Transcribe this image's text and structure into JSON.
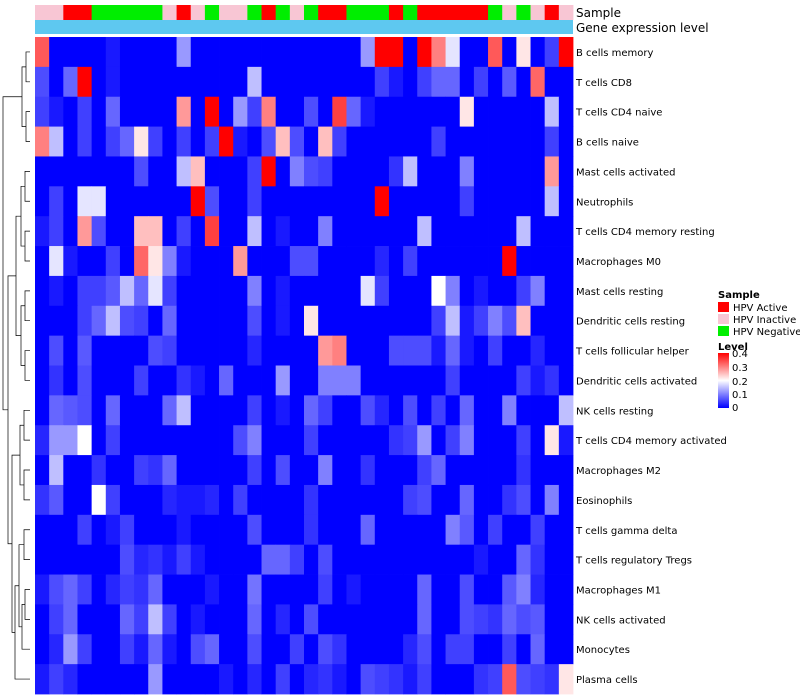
{
  "chart_data": {
    "type": "heatmap",
    "annotation_rows": [
      {
        "label": "Sample"
      },
      {
        "label": "Gene expression level"
      }
    ],
    "sample_groups": [
      "Ia",
      "Ia",
      "A",
      "A",
      "Na",
      "Na",
      "Na",
      "Na",
      "Na",
      "Ia",
      "A",
      "Ia",
      "Na",
      "Ia",
      "Ia",
      "Na",
      "A",
      "Na",
      "Ia",
      "Na",
      "A",
      "A",
      "Na",
      "Na",
      "Na",
      "A",
      "Na",
      "A",
      "A",
      "A",
      "A",
      "A",
      "Na",
      "Ia",
      "Na",
      "Ia",
      "A",
      "Ia"
    ],
    "expression_level_color": "#5ec8f0",
    "rows": [
      "B cells memory",
      "T cells CD8",
      "T cells CD4 naive",
      "B cells naive",
      "Mast cells activated",
      "Neutrophils",
      "T cells CD4 memory resting",
      "Macrophages M0",
      "Mast cells resting",
      "Dendritic cells resting",
      "T cells follicular helper",
      "Dendritic cells activated",
      "NK cells resting",
      "T cells CD4 memory activated",
      "Macrophages M2",
      "Eosinophils",
      "T cells gamma delta",
      "T cells regulatory  Tregs",
      "Macrophages M1",
      "NK cells activated",
      "Monocytes",
      "Plasma cells"
    ],
    "n_columns": 38,
    "color_scale": {
      "min": 0,
      "max": 0.4,
      "colors": [
        "#0000ff",
        "#ffffff",
        "#ff0000"
      ],
      "legend_title": "Level",
      "ticks": [
        "0.4",
        "0.3",
        "0.2",
        "0.1",
        "0"
      ]
    },
    "legend": {
      "title": "Sample",
      "items": [
        {
          "label": "HPV Active",
          "color": "#ff0000"
        },
        {
          "label": "HPV Inactive",
          "color": "#f8c6d4"
        },
        {
          "label": "HPV Negative",
          "color": "#00ee00"
        }
      ]
    },
    "values_note": "Cell values are approximate readings of fraction estimates from color; 0 = deep blue, 0.4 = red.",
    "values": [
      [
        0.33,
        0,
        0,
        0,
        0,
        0.02,
        0,
        0,
        0,
        0,
        0.12,
        0,
        0,
        0,
        0,
        0,
        0,
        0,
        0,
        0,
        0,
        0,
        0,
        0.12,
        0.4,
        0.4,
        0,
        0.4,
        0.3,
        0.18,
        0,
        0,
        0.33,
        0,
        0.22,
        0,
        0.05,
        0.4
      ],
      [
        0.06,
        0,
        0.08,
        0.4,
        0,
        0.02,
        0,
        0,
        0,
        0,
        0,
        0,
        0,
        0,
        0,
        0.15,
        0,
        0,
        0,
        0,
        0,
        0,
        0,
        0,
        0.05,
        0.02,
        0,
        0.05,
        0.08,
        0.08,
        0,
        0.05,
        0,
        0.07,
        0,
        0.32,
        0,
        0
      ],
      [
        0.05,
        0.02,
        0,
        0.05,
        0,
        0.08,
        0,
        0,
        0,
        0,
        0.28,
        0,
        0.4,
        0,
        0.12,
        0.05,
        0.3,
        0,
        0,
        0.06,
        0,
        0.35,
        0.08,
        0.02,
        0,
        0,
        0,
        0,
        0,
        0,
        0.22,
        0,
        0,
        0,
        0,
        0,
        0.15,
        0
      ],
      [
        0.3,
        0.15,
        0,
        0.05,
        0,
        0.05,
        0.08,
        0.22,
        0.05,
        0,
        0.05,
        0,
        0.05,
        0.4,
        0.02,
        0,
        0.06,
        0.25,
        0.06,
        0,
        0.25,
        0.05,
        0,
        0,
        0,
        0,
        0,
        0,
        0.05,
        0,
        0,
        0,
        0,
        0,
        0,
        0,
        0.05,
        0
      ],
      [
        0,
        0,
        0,
        0,
        0,
        0,
        0,
        0.06,
        0,
        0,
        0.15,
        0.25,
        0,
        0,
        0,
        0.05,
        0.4,
        0,
        0.1,
        0.06,
        0.05,
        0,
        0,
        0,
        0,
        0.04,
        0.15,
        0,
        0,
        0,
        0.1,
        0,
        0,
        0,
        0,
        0,
        0.28,
        0
      ],
      [
        0,
        0.05,
        0,
        0.18,
        0.18,
        0,
        0,
        0,
        0,
        0,
        0,
        0.4,
        0.06,
        0,
        0,
        0.05,
        0,
        0,
        0,
        0,
        0,
        0,
        0,
        0,
        0.4,
        0,
        0,
        0,
        0,
        0,
        0.05,
        0,
        0,
        0,
        0,
        0,
        0.15,
        0
      ],
      [
        0.02,
        0.05,
        0,
        0.28,
        0.06,
        0,
        0,
        0.25,
        0.25,
        0,
        0.05,
        0,
        0.35,
        0,
        0,
        0.15,
        0,
        0.02,
        0,
        0,
        0.1,
        0,
        0,
        0,
        0,
        0,
        0,
        0.15,
        0,
        0,
        0,
        0,
        0,
        0,
        0.15,
        0,
        0,
        0
      ],
      [
        0,
        0.18,
        0.02,
        0,
        0,
        0.05,
        0,
        0.32,
        0.22,
        0.1,
        0.02,
        0,
        0,
        0,
        0.28,
        0,
        0,
        0,
        0.06,
        0.06,
        0,
        0,
        0,
        0,
        0.03,
        0,
        0.05,
        0,
        0,
        0,
        0,
        0,
        0,
        0.4,
        0,
        0,
        0,
        0
      ],
      [
        0,
        0.02,
        0,
        0.05,
        0.05,
        0.07,
        0.15,
        0.08,
        0.18,
        0.05,
        0,
        0,
        0,
        0,
        0,
        0.1,
        0,
        0.02,
        0,
        0,
        0,
        0,
        0,
        0.18,
        0.05,
        0,
        0,
        0,
        0.2,
        0.1,
        0,
        0.02,
        0,
        0,
        0.05,
        0.1,
        0,
        0
      ],
      [
        0,
        0,
        0,
        0.05,
        0.08,
        0.15,
        0.06,
        0.05,
        0,
        0.08,
        0,
        0,
        0,
        0,
        0,
        0.06,
        0,
        0.02,
        0,
        0.22,
        0,
        0,
        0,
        0,
        0,
        0,
        0,
        0,
        0.05,
        0.15,
        0.02,
        0.05,
        0.1,
        0.06,
        0.25,
        0,
        0,
        0
      ],
      [
        0,
        0.06,
        0,
        0.07,
        0,
        0,
        0,
        0,
        0.06,
        0.05,
        0,
        0,
        0,
        0,
        0,
        0.03,
        0,
        0,
        0,
        0,
        0.28,
        0.3,
        0,
        0,
        0,
        0.06,
        0.06,
        0.06,
        0.02,
        0.08,
        0.02,
        0,
        0.05,
        0,
        0,
        0.03,
        0,
        0
      ],
      [
        0,
        0.04,
        0,
        0.06,
        0,
        0,
        0,
        0.05,
        0,
        0,
        0.04,
        0.02,
        0,
        0.08,
        0,
        0,
        0,
        0.12,
        0,
        0,
        0.1,
        0.1,
        0.1,
        0,
        0,
        0,
        0,
        0,
        0,
        0.05,
        0,
        0,
        0,
        0,
        0.05,
        0.02,
        0.04,
        0
      ],
      [
        0,
        0.08,
        0.07,
        0.06,
        0,
        0.08,
        0,
        0,
        0,
        0.08,
        0.15,
        0,
        0,
        0,
        0,
        0.05,
        0,
        0.02,
        0,
        0.08,
        0.05,
        0,
        0,
        0.06,
        0.03,
        0,
        0.06,
        0,
        0.05,
        0,
        0.08,
        0,
        0,
        0.1,
        0,
        0,
        0,
        0.15
      ],
      [
        0.03,
        0.12,
        0.12,
        0.2,
        0,
        0.05,
        0,
        0,
        0,
        0,
        0,
        0,
        0,
        0,
        0.06,
        0.1,
        0,
        0,
        0,
        0.05,
        0,
        0,
        0,
        0,
        0,
        0.04,
        0.05,
        0.12,
        0,
        0.05,
        0.1,
        0,
        0,
        0,
        0.05,
        0,
        0.22,
        0.02
      ],
      [
        0,
        0.15,
        0,
        0,
        0.04,
        0,
        0,
        0.05,
        0.04,
        0.08,
        0,
        0,
        0,
        0,
        0,
        0.05,
        0,
        0.06,
        0,
        0,
        0.1,
        0,
        0,
        0.04,
        0,
        0,
        0,
        0.05,
        0.08,
        0,
        0,
        0,
        0,
        0,
        0.04,
        0,
        0,
        0
      ],
      [
        0.04,
        0.07,
        0,
        0,
        0.2,
        0.05,
        0,
        0,
        0,
        0.03,
        0.02,
        0.02,
        0.03,
        0,
        0.05,
        0,
        0,
        0,
        0,
        0.04,
        0,
        0,
        0,
        0,
        0,
        0,
        0.05,
        0.06,
        0,
        0,
        0.08,
        0,
        0,
        0.04,
        0.06,
        0,
        0.1,
        0
      ],
      [
        0,
        0,
        0,
        0.05,
        0,
        0.02,
        0.05,
        0,
        0,
        0,
        0.02,
        0,
        0,
        0,
        0,
        0.06,
        0,
        0,
        0,
        0.04,
        0,
        0,
        0,
        0.08,
        0,
        0,
        0,
        0,
        0,
        0.1,
        0.07,
        0,
        0.05,
        0,
        0,
        0.05,
        0,
        0
      ],
      [
        0,
        0,
        0,
        0,
        0,
        0,
        0.06,
        0.03,
        0.04,
        0.02,
        0.05,
        0.02,
        0,
        0,
        0,
        0,
        0.08,
        0.08,
        0.05,
        0,
        0.06,
        0,
        0,
        0,
        0,
        0,
        0,
        0,
        0,
        0,
        0,
        0.02,
        0,
        0,
        0.08,
        0.04,
        0,
        0
      ],
      [
        0.02,
        0.06,
        0.08,
        0.05,
        0,
        0.03,
        0.05,
        0.04,
        0.08,
        0,
        0,
        0,
        0.02,
        0,
        0,
        0.09,
        0,
        0,
        0,
        0,
        0.05,
        0,
        0.02,
        0,
        0,
        0,
        0,
        0.08,
        0,
        0,
        0.06,
        0,
        0,
        0.07,
        0.1,
        0.03,
        0,
        0
      ],
      [
        0,
        0.05,
        0.08,
        0,
        0,
        0,
        0.08,
        0.05,
        0.15,
        0.05,
        0,
        0.02,
        0,
        0,
        0,
        0.08,
        0,
        0.03,
        0,
        0.06,
        0,
        0,
        0,
        0,
        0,
        0,
        0,
        0.08,
        0,
        0,
        0.06,
        0.05,
        0.04,
        0.08,
        0.06,
        0.07,
        0,
        0
      ],
      [
        0,
        0.03,
        0.12,
        0.05,
        0,
        0,
        0.05,
        0.02,
        0.08,
        0.02,
        0,
        0.06,
        0.08,
        0,
        0,
        0.06,
        0,
        0,
        0.05,
        0,
        0.06,
        0.04,
        0,
        0,
        0,
        0,
        0.03,
        0.06,
        0,
        0.05,
        0.05,
        0,
        0,
        0.05,
        0,
        0.08,
        0,
        0
      ],
      [
        0.02,
        0.05,
        0.03,
        0,
        0,
        0,
        0,
        0,
        0.12,
        0,
        0,
        0,
        0,
        0.02,
        0,
        0.03,
        0,
        0.05,
        0,
        0.03,
        0.04,
        0.02,
        0,
        0.06,
        0.05,
        0.04,
        0.02,
        0.05,
        0,
        0,
        0,
        0.04,
        0.05,
        0.33,
        0.06,
        0.05,
        0.04,
        0.22
      ]
    ]
  }
}
